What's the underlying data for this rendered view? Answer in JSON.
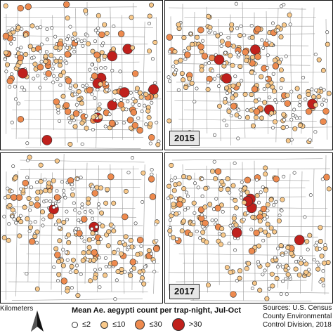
{
  "panels": {
    "top_left": {
      "year": "",
      "seed": 11,
      "high": 1.0
    },
    "top_right": {
      "year": "2015",
      "seed": 23,
      "high": 0.55
    },
    "bottom_left": {
      "year": "",
      "seed": 37,
      "high": 0.55
    },
    "bottom_right": {
      "year": "2017",
      "seed": 51,
      "high": 0.45
    }
  },
  "scale": {
    "label": "Kilometers"
  },
  "legend": {
    "title": "Mean Ae. aegypti count per trap-night, Jul-Oct",
    "items": [
      {
        "label": "≤2",
        "color": "#ffffff"
      },
      {
        "label": "≤10",
        "color": "#f9c98a"
      },
      {
        "label": "≤30",
        "color": "#ee8a4e"
      },
      {
        "label": ">30",
        "color": "#c0201c"
      }
    ]
  },
  "sources": {
    "line1": "Sources: U.S. Census B",
    "line2": "County Environmental S",
    "line3": "Control Division, 2018"
  }
}
